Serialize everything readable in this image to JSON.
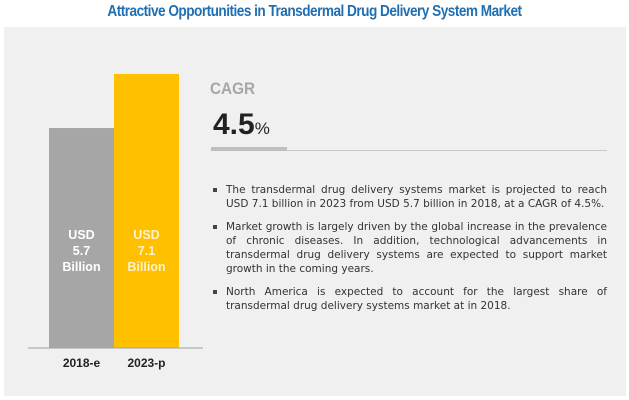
{
  "title": "Attractive Opportunities in Transdermal Drug Delivery System Market",
  "cagr": {
    "label": "CAGR",
    "value": "4.5",
    "unit": "%"
  },
  "bullets": [
    "The transdermal drug delivery systems market is projected to reach USD 7.1 billion in 2023 from USD 5.7 billion in 2018, at a CAGR of 4.5%.",
    "Market growth is largely driven by the global increase in the prevalence of chronic diseases. In addition, technological advancements in transdermal drug delivery systems are expected to support market growth in the coming years.",
    "North America is expected to account for the largest share of transdermal drug delivery systems market at in 2018."
  ],
  "chart_data": {
    "type": "bar",
    "title": "",
    "xlabel": "",
    "ylabel": "",
    "categories": [
      "2018-e",
      "2023-p"
    ],
    "values": [
      5.7,
      7.1
    ],
    "unit": "USD Billion",
    "data_labels": [
      [
        "USD",
        "5.7",
        "Billion"
      ],
      [
        "USD",
        "7.1",
        "Billion"
      ]
    ],
    "colors": [
      "#a6a6a6",
      "#ffc000"
    ],
    "label_colors": [
      "#ffffff",
      "#fff2cc"
    ],
    "ylim": [
      0,
      7.1
    ],
    "grid": false,
    "legend": "none"
  }
}
